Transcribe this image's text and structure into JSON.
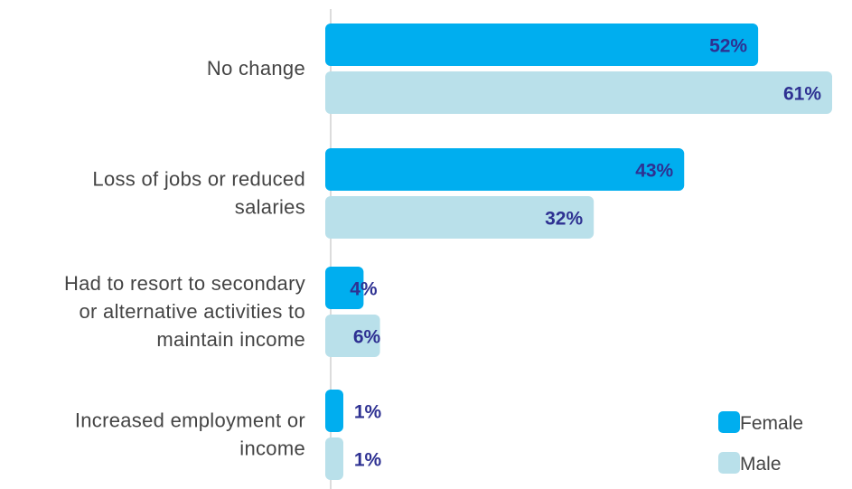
{
  "chart_data": {
    "type": "bar",
    "orientation": "horizontal",
    "categories": [
      [
        "No change"
      ],
      [
        "Loss of jobs or reduced",
        "salaries"
      ],
      [
        "Had to resort to secondary",
        "or alternative activities to",
        "maintain income"
      ],
      [
        "Increased employment or",
        "income"
      ]
    ],
    "series": [
      {
        "name": "Female",
        "color": "#00aeef",
        "values": [
          52,
          43,
          4,
          1
        ],
        "labels": [
          "52%",
          "43%",
          "4%",
          "1%"
        ]
      },
      {
        "name": "Male",
        "color": "#b9e0ea",
        "values": [
          61,
          32,
          6,
          1
        ],
        "labels": [
          "61%",
          "32%",
          "6%",
          "1%"
        ]
      }
    ],
    "xlim": [
      0,
      62
    ],
    "value_suffix": "%",
    "legend_position": "bottom-right",
    "grid": false
  }
}
